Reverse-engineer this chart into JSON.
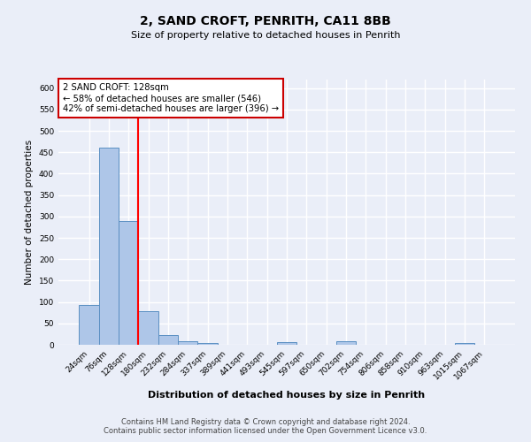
{
  "title1": "2, SAND CROFT, PENRITH, CA11 8BB",
  "title2": "Size of property relative to detached houses in Penrith",
  "xlabel": "Distribution of detached houses by size in Penrith",
  "ylabel": "Number of detached properties",
  "categories": [
    "24sqm",
    "76sqm",
    "128sqm",
    "180sqm",
    "232sqm",
    "284sqm",
    "337sqm",
    "389sqm",
    "441sqm",
    "493sqm",
    "545sqm",
    "597sqm",
    "650sqm",
    "702sqm",
    "754sqm",
    "806sqm",
    "858sqm",
    "910sqm",
    "963sqm",
    "1015sqm",
    "1067sqm"
  ],
  "values": [
    93,
    460,
    290,
    78,
    22,
    8,
    5,
    0,
    0,
    0,
    6,
    0,
    0,
    8,
    0,
    0,
    0,
    0,
    0,
    5,
    0
  ],
  "bar_color": "#aec6e8",
  "bar_edge_color": "#5a8fc2",
  "red_line_index": 2,
  "annotation_title": "2 SAND CROFT: 128sqm",
  "annotation_line1": "← 58% of detached houses are smaller (546)",
  "annotation_line2": "42% of semi-detached houses are larger (396) →",
  "annotation_box_color": "#ffffff",
  "annotation_box_edge": "#cc0000",
  "ylim": [
    0,
    620
  ],
  "yticks": [
    0,
    50,
    100,
    150,
    200,
    250,
    300,
    350,
    400,
    450,
    500,
    550,
    600
  ],
  "background_color": "#eaeef8",
  "fig_background_color": "#eaeef8",
  "grid_color": "#ffffff",
  "footer": "Contains HM Land Registry data © Crown copyright and database right 2024.\nContains public sector information licensed under the Open Government Licence v3.0."
}
